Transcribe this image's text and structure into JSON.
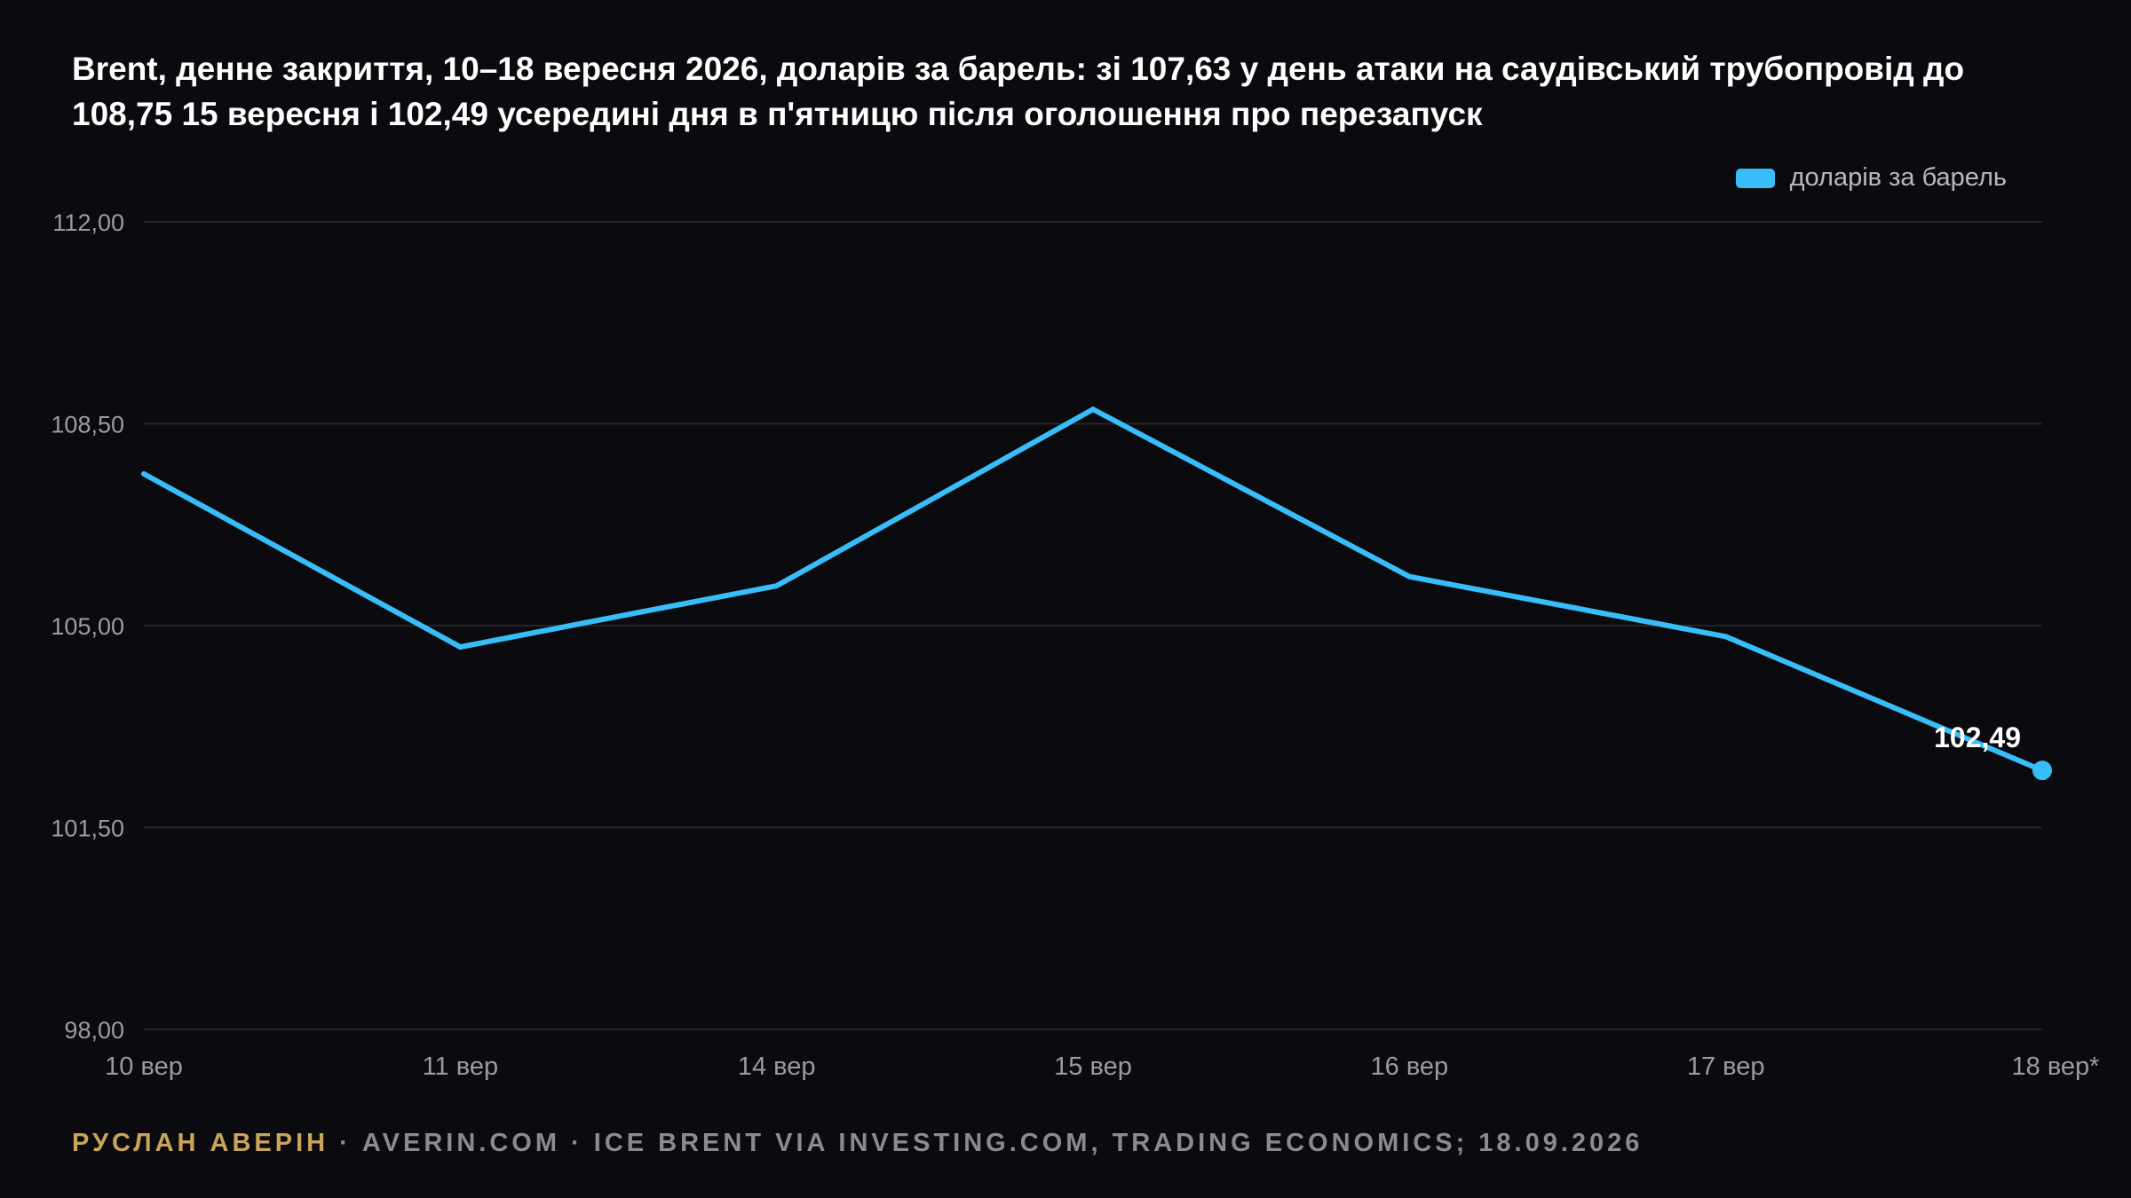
{
  "title": "Brent, денне закриття, 10–18 вересня 2026, доларів за барель: зі 107,63 у день атаки на саудівський трубопровід до 108,75 15 вересня і 102,49 усередині дня в п'ятницю після оголошення про перезапуск",
  "footer": {
    "author": "РУСЛАН АВЕРІН",
    "source": " · AVERIN.COM · ICE BRENT VIA INVESTING.COM, TRADING ECONOMICS; 18.09.2026"
  },
  "colors": {
    "background": "#0b0b0f",
    "line": "#38bdf8",
    "grid": "#23232a",
    "tick_text": "#9a9aa2",
    "author": "#c9a55a"
  },
  "chart_data": {
    "type": "line",
    "title": "Brent, денне закриття, 10–18 вересня 2026, доларів за барель: зі 107,63 у день атаки на саудівський трубопровід до 108,75 15 вересня і 102,49 усередині дня в п'ятницю після оголошення про перезапуск",
    "categories": [
      "10 вер",
      "11 вер",
      "14 вер",
      "15 вер",
      "16 вер",
      "17 вер",
      "18 вер*"
    ],
    "series": [
      {
        "name": "доларів за барель",
        "values": [
          107.63,
          104.63,
          105.69,
          108.75,
          105.85,
          104.81,
          102.49
        ]
      }
    ],
    "y_ticks": [
      98.0,
      101.5,
      105.0,
      108.5,
      112.0
    ],
    "y_tick_labels": [
      "98,00",
      "101,50",
      "105,00",
      "108,50",
      "112,00"
    ],
    "ylim": [
      98.0,
      112.0
    ],
    "grid": true,
    "legend": "top-right",
    "annotations": [
      {
        "category": "18 вер*",
        "value": 102.49,
        "label": "102,49"
      }
    ]
  }
}
